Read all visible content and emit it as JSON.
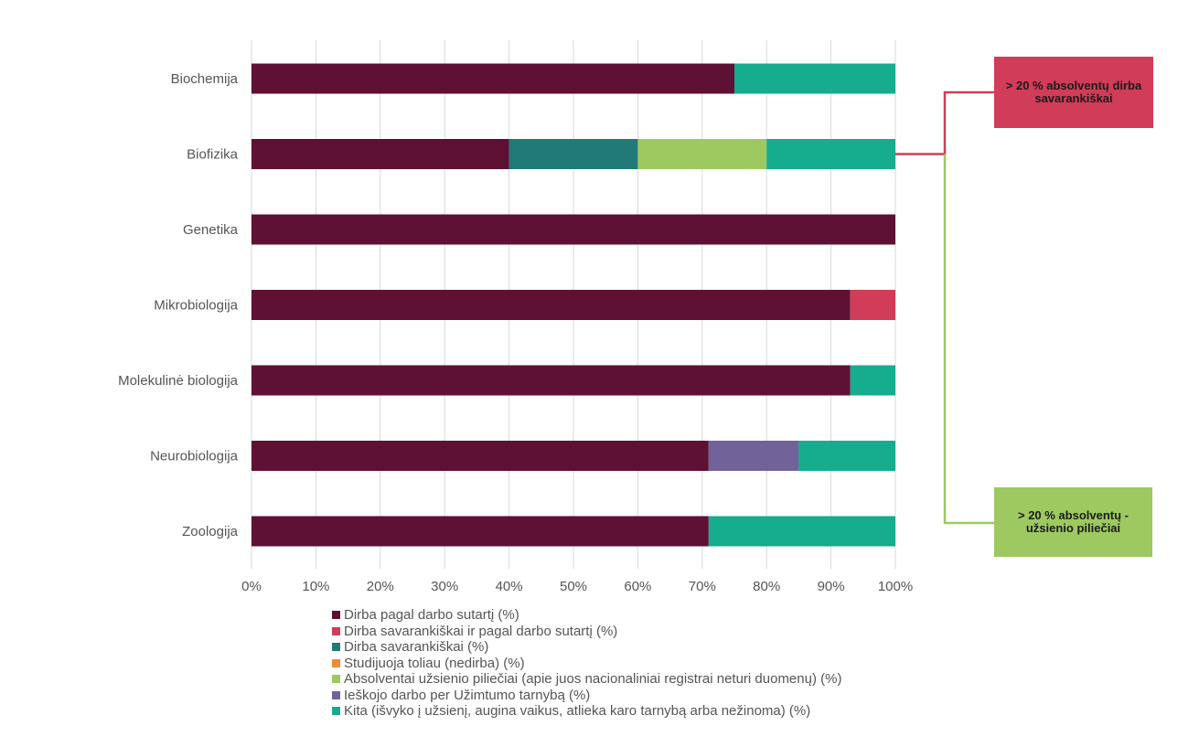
{
  "chart_data": {
    "type": "bar",
    "orientation": "horizontal",
    "stacked": true,
    "categories": [
      "Biochemija",
      "Biofizika",
      "Genetika",
      "Mikrobiologija",
      "Molekulinė biologija",
      "Neurobiologija",
      "Zoologija"
    ],
    "series": [
      {
        "name": "Dirba pagal darbo sutartį (%)",
        "color": "#5e1133",
        "values": [
          75,
          40,
          100,
          93,
          93,
          71,
          71
        ]
      },
      {
        "name": "Dirba savarankiškai ir pagal darbo sutartį (%)",
        "color": "#d13c58",
        "values": [
          0,
          0,
          0,
          7,
          0,
          0,
          0
        ]
      },
      {
        "name": "Dirba savarankiškai (%)",
        "color": "#217a78",
        "values": [
          0,
          20,
          0,
          0,
          0,
          0,
          0
        ]
      },
      {
        "name": "Studijuoja toliau (nedirba) (%)",
        "color": "#f08b35",
        "values": [
          0,
          0,
          0,
          0,
          0,
          0,
          0
        ]
      },
      {
        "name": "Absolventai užsienio piliečiai (apie juos nacionaliniai registrai neturi duomenų) (%)",
        "color": "#9dc960",
        "values": [
          0,
          20,
          0,
          0,
          0,
          0,
          0
        ]
      },
      {
        "name": "Ieškojo darbo per Užimtumo tarnybą (%)",
        "color": "#72629a",
        "values": [
          0,
          0,
          0,
          0,
          0,
          14,
          0
        ]
      },
      {
        "name": "Kita (išvyko į užsienį, augina vaikus, atlieka karo tarnybą arba nežinoma) (%)",
        "color": "#16ac8e",
        "values": [
          25,
          20,
          0,
          0,
          7,
          15,
          29
        ]
      }
    ],
    "xlim": [
      0,
      100
    ],
    "xticks": [
      "0%",
      "10%",
      "20%",
      "30%",
      "40%",
      "50%",
      "60%",
      "70%",
      "80%",
      "90%",
      "100%"
    ],
    "grid": "vertical",
    "legend_position": "bottom",
    "annotations": [
      {
        "text": "> 20 % absolventų dirba savarankiškai",
        "color": "#d13c58",
        "target": "Biofizika"
      },
      {
        "text": "> 20 % absolventų - užsienio piliečiai",
        "color": "#9dc960",
        "target": "Biofizika"
      }
    ]
  }
}
